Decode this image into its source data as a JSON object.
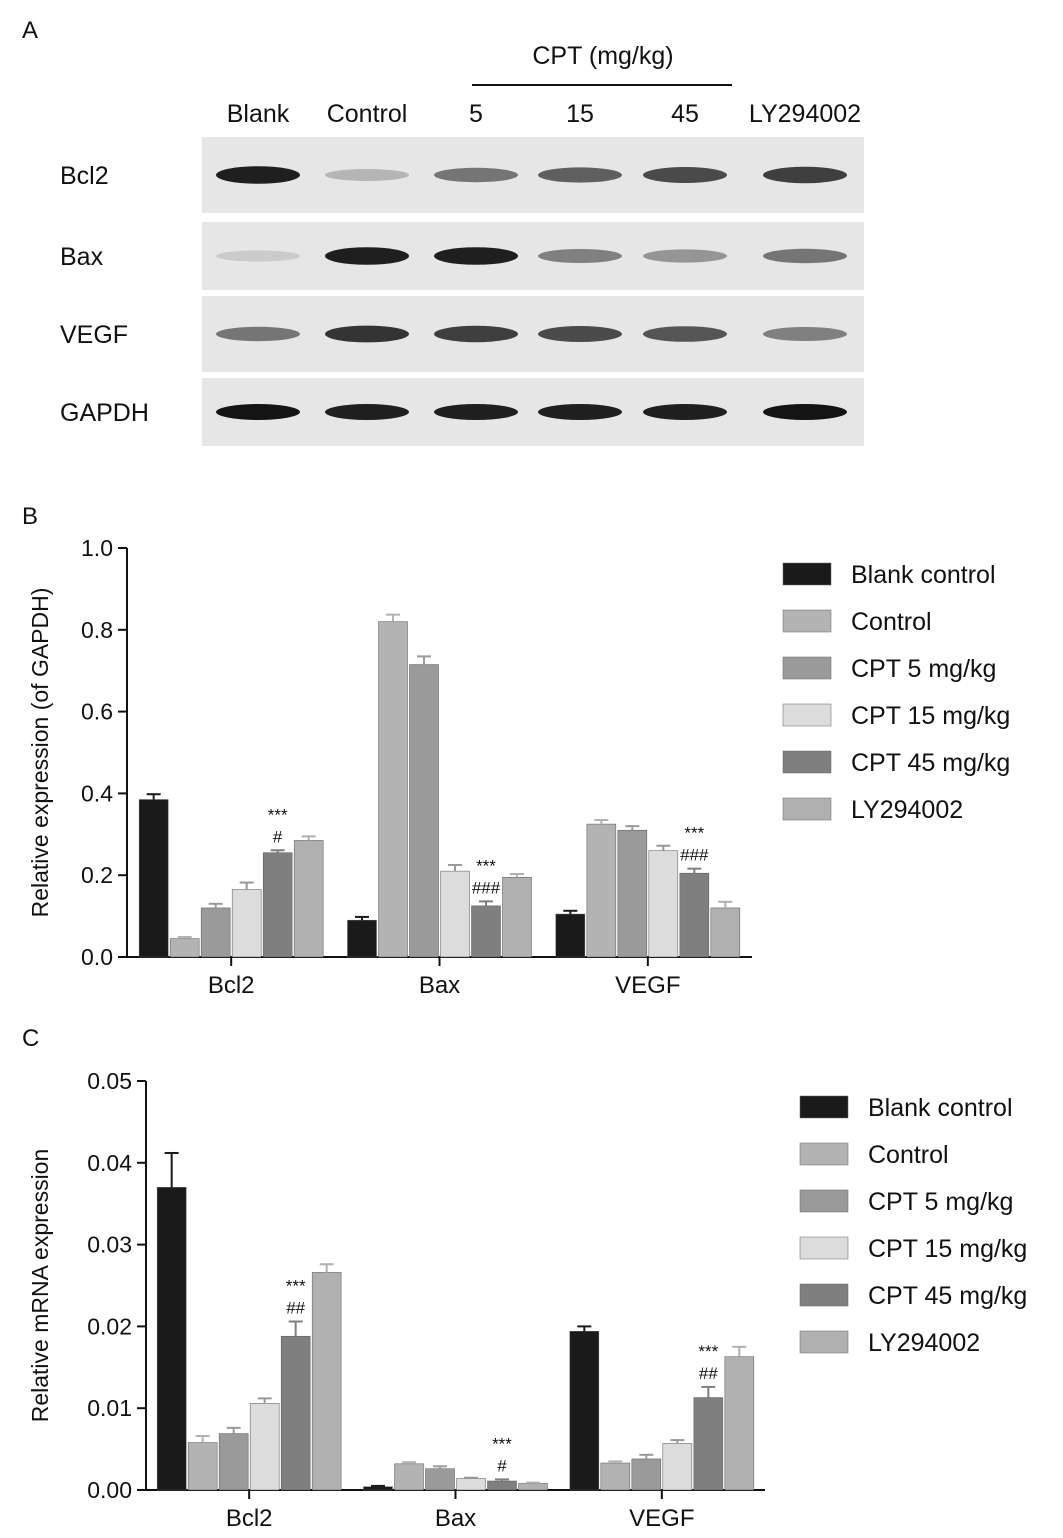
{
  "panel_a": {
    "letter": "A",
    "cpt_header": "CPT (mg/kg)",
    "lanes": [
      "Blank",
      "Control",
      "5",
      "15",
      "45",
      "LY294002"
    ],
    "rows": [
      "Bcl2",
      "Bax",
      "VEGF",
      "GAPDH"
    ],
    "band_intensity": {
      "Bcl2": [
        0.95,
        0.25,
        0.55,
        0.65,
        0.75,
        0.8
      ],
      "Bax": [
        0.15,
        0.95,
        0.95,
        0.5,
        0.4,
        0.55
      ],
      "VEGF": [
        0.55,
        0.85,
        0.8,
        0.75,
        0.7,
        0.5
      ],
      "GAPDH": [
        1.0,
        0.95,
        0.95,
        0.95,
        0.95,
        1.0
      ]
    }
  },
  "series_colors": [
    "#1a1a1a",
    "#b3b3b3",
    "#9a9a9a",
    "#dcdcdc",
    "#7f7f7f",
    "#b0b0b0"
  ],
  "chart_data": [
    {
      "panel": "B",
      "type": "bar",
      "categories": [
        "Bcl2",
        "Bax",
        "VEGF"
      ],
      "ylabel": "Relative expression (of GAPDH)",
      "ylim": [
        0,
        1.0
      ],
      "yticks": [
        "0.0",
        "0.2",
        "0.4",
        "0.6",
        "0.8",
        "1.0"
      ],
      "yticks_values": [
        0,
        0.2,
        0.4,
        0.6,
        0.8,
        1.0
      ],
      "legend_position": "right",
      "series": [
        {
          "name": "Blank control",
          "values": [
            0.385,
            0.09,
            0.105
          ],
          "errors": [
            0.013,
            0.008,
            0.008
          ]
        },
        {
          "name": "Control",
          "values": [
            0.045,
            0.82,
            0.325
          ],
          "errors": [
            0.004,
            0.017,
            0.01
          ]
        },
        {
          "name": "CPT 5 mg/kg",
          "values": [
            0.12,
            0.715,
            0.31
          ],
          "errors": [
            0.01,
            0.02,
            0.01
          ]
        },
        {
          "name": "CPT 15 mg/kg",
          "values": [
            0.165,
            0.21,
            0.26
          ],
          "errors": [
            0.017,
            0.015,
            0.012
          ]
        },
        {
          "name": "CPT 45 mg/kg",
          "values": [
            0.255,
            0.125,
            0.205
          ],
          "errors": [
            0.006,
            0.011,
            0.011
          ]
        },
        {
          "name": "LY294002",
          "values": [
            0.285,
            0.195,
            0.12
          ],
          "errors": [
            0.01,
            0.008,
            0.015
          ]
        }
      ],
      "annotations": [
        {
          "category_index": 0,
          "series_index": 4,
          "lines": [
            "***",
            "#"
          ]
        },
        {
          "category_index": 1,
          "series_index": 4,
          "lines": [
            "***",
            "###"
          ]
        },
        {
          "category_index": 2,
          "series_index": 4,
          "lines": [
            "***",
            "###"
          ]
        }
      ]
    },
    {
      "panel": "C",
      "type": "bar",
      "categories": [
        "Bcl2",
        "Bax",
        "VEGF"
      ],
      "ylabel": "Relative mRNA expression",
      "ylim": [
        0,
        0.05
      ],
      "yticks": [
        "0.00",
        "0.01",
        "0.02",
        "0.03",
        "0.04",
        "0.05"
      ],
      "yticks_values": [
        0,
        0.01,
        0.02,
        0.03,
        0.04,
        0.05
      ],
      "legend_position": "right",
      "series": [
        {
          "name": "Blank control",
          "values": [
            0.037,
            0.0004,
            0.0194
          ],
          "errors": [
            0.0042,
            0.0001,
            0.0006
          ]
        },
        {
          "name": "Control",
          "values": [
            0.0058,
            0.0032,
            0.0033
          ],
          "errors": [
            0.0008,
            0.0002,
            0.0002
          ]
        },
        {
          "name": "CPT 5 mg/kg",
          "values": [
            0.0069,
            0.0026,
            0.0038
          ],
          "errors": [
            0.0007,
            0.0003,
            0.0005
          ]
        },
        {
          "name": "CPT 15 mg/kg",
          "values": [
            0.0106,
            0.0014,
            0.0057
          ],
          "errors": [
            0.0006,
            0.0001,
            0.0004
          ]
        },
        {
          "name": "CPT 45 mg/kg",
          "values": [
            0.0188,
            0.0011,
            0.0113
          ],
          "errors": [
            0.0018,
            0.0002,
            0.0013
          ]
        },
        {
          "name": "LY294002",
          "values": [
            0.0266,
            0.0008,
            0.0163
          ],
          "errors": [
            0.001,
            0.0001,
            0.0012
          ]
        }
      ],
      "annotations": [
        {
          "category_index": 0,
          "series_index": 4,
          "lines": [
            "***",
            "##"
          ]
        },
        {
          "category_index": 1,
          "series_index": 4,
          "lines": [
            "***",
            "#"
          ]
        },
        {
          "category_index": 2,
          "series_index": 4,
          "lines": [
            "***",
            "##"
          ]
        }
      ]
    }
  ]
}
